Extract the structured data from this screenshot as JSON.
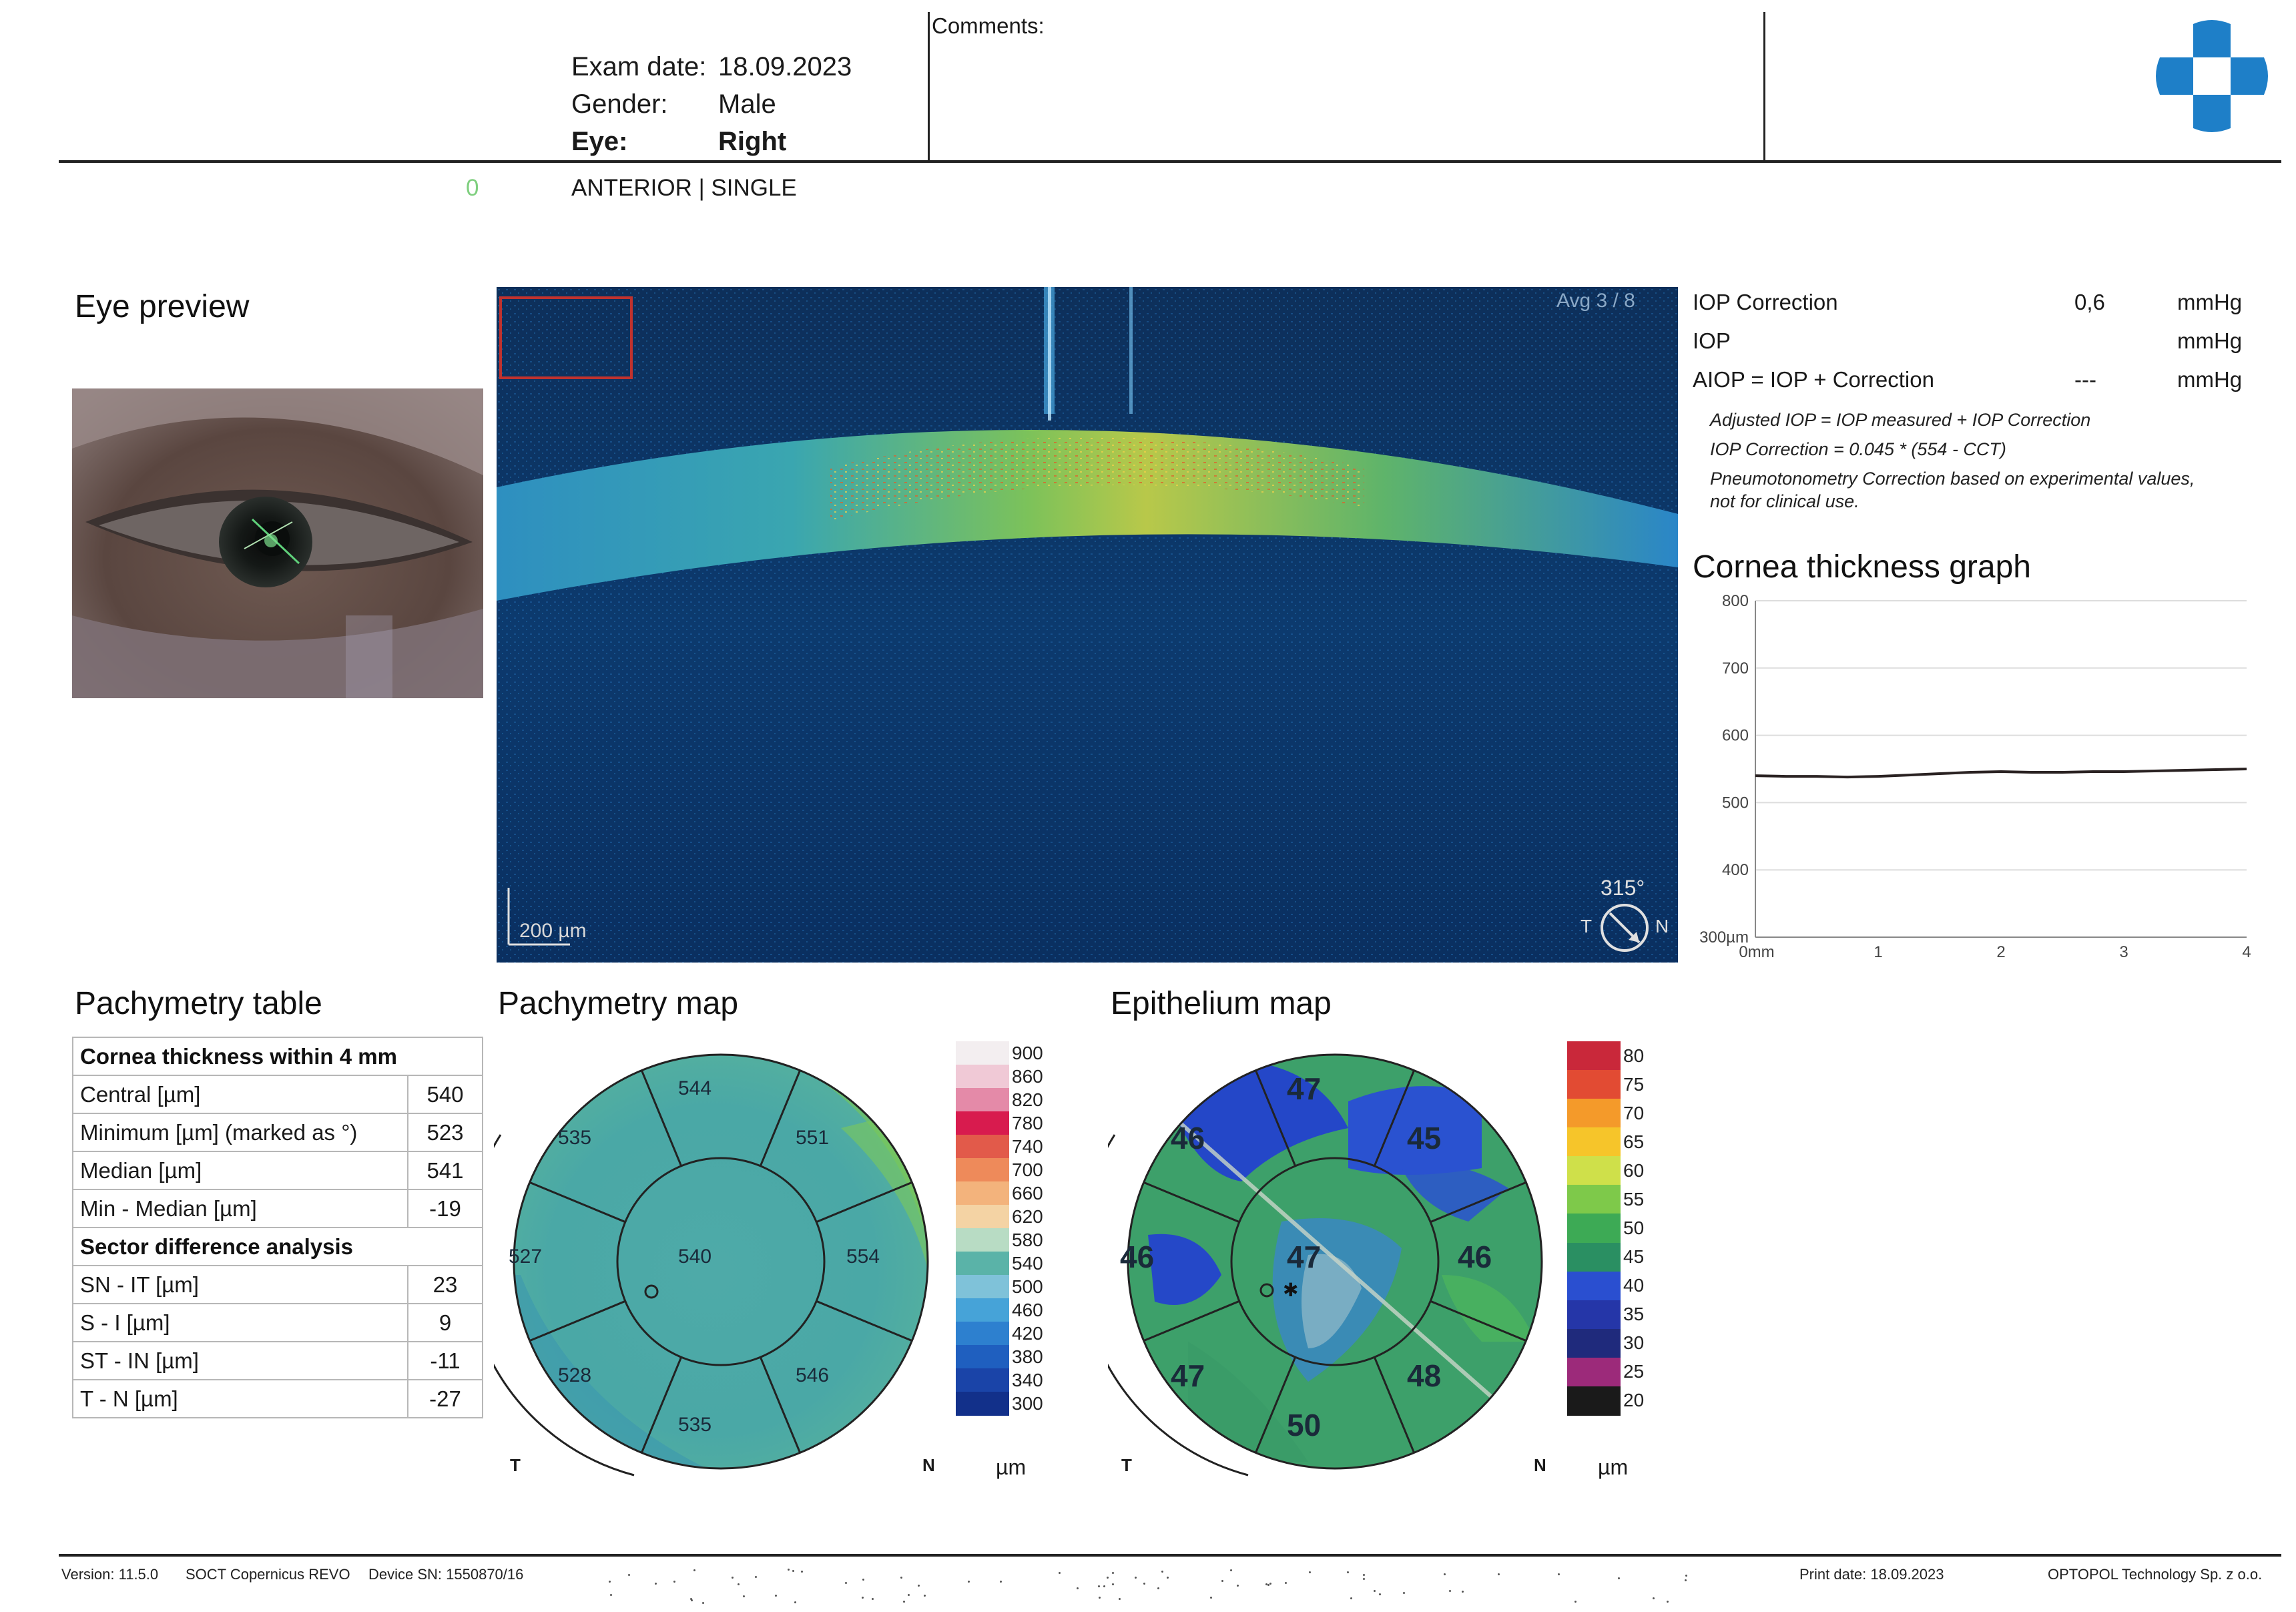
{
  "header": {
    "exam_date_label": "Exam date:",
    "exam_date": "18.09.2023",
    "gender_label": "Gender:",
    "gender": "Male",
    "eye_label": "Eye:",
    "eye": "Right",
    "comments_label": "Comments:",
    "scan_type": "ANTERIOR | SINGLE",
    "marker": "0"
  },
  "eye_preview": {
    "title": "Eye preview"
  },
  "oct_scan": {
    "avg_label": "Avg 3 / 8",
    "scale_label": "200 µm",
    "angle": "315°",
    "temporal": "T",
    "nasal": "N"
  },
  "iop": {
    "rows": [
      {
        "label": "IOP Correction",
        "value": "0,6",
        "unit": "mmHg"
      },
      {
        "label": "IOP",
        "value": "",
        "unit": "mmHg"
      },
      {
        "label": "AIOP = IOP + Correction",
        "value": "---",
        "unit": "mmHg"
      }
    ],
    "notes": [
      "Adjusted IOP = IOP measured + IOP Correction",
      "IOP Correction = 0.045 * (554 - CCT)",
      "Pneumotonometry Correction based on experimental values,",
      "not for clinical use."
    ]
  },
  "thickness_graph": {
    "title": "Cornea thickness graph",
    "y_ticks": [
      "800",
      "700",
      "600",
      "500",
      "400",
      "300µm"
    ],
    "x_ticks": [
      "0mm",
      "1",
      "2",
      "3",
      "4"
    ],
    "chart_data": {
      "type": "line",
      "ylim": [
        300,
        800
      ],
      "xlim": [
        0,
        4
      ],
      "x": [
        0,
        0.25,
        0.5,
        0.75,
        1.0,
        1.25,
        1.5,
        1.75,
        2.0,
        2.25,
        2.5,
        2.75,
        3.0,
        3.25,
        3.5,
        3.75,
        4.0
      ],
      "y": [
        540,
        539,
        539,
        538,
        539,
        541,
        543,
        545,
        546,
        545,
        545,
        546,
        546,
        547,
        548,
        549,
        550
      ]
    }
  },
  "pachymetry_table": {
    "title": "Pachymetry table",
    "section1_title": "Cornea thickness within 4 mm",
    "rows1": [
      {
        "label": "Central [µm]",
        "value": "540"
      },
      {
        "label": "Minimum [µm] (marked as °)",
        "value": "523"
      },
      {
        "label": "Median [µm]",
        "value": "541"
      },
      {
        "label": "Min - Median [µm]",
        "value": "-19"
      }
    ],
    "section2_title": "Sector difference analysis",
    "rows2": [
      {
        "label": "SN - IT [µm]",
        "value": "23"
      },
      {
        "label": "S - I [µm]",
        "value": "9"
      },
      {
        "label": "ST - IN [µm]",
        "value": "-11"
      },
      {
        "label": "T - N [µm]",
        "value": "-27"
      }
    ]
  },
  "pachymetry_map": {
    "title": "Pachymetry map",
    "center": "540",
    "sectors": [
      "544",
      "551",
      "554",
      "546",
      "535",
      "528",
      "527",
      "535"
    ],
    "temporal": "T",
    "nasal": "N",
    "unit": "µm",
    "legend": [
      "900",
      "860",
      "820",
      "780",
      "740",
      "700",
      "660",
      "620",
      "580",
      "540",
      "500",
      "460",
      "420",
      "380",
      "340",
      "300"
    ],
    "legend_colors": [
      "#f3eef0",
      "#f0c9d6",
      "#e48aa8",
      "#d81b4e",
      "#e25a4a",
      "#ee8a5a",
      "#f3b37c",
      "#f4d3a4",
      "#b8dcc4",
      "#5ab3a8",
      "#7fc2d9",
      "#46a3d8",
      "#2d80cf",
      "#1f5fbf",
      "#1a44a8",
      "#12308a"
    ]
  },
  "epithelium_map": {
    "title": "Epithelium map",
    "center": "47",
    "sectors": [
      "47",
      "45",
      "46",
      "48",
      "50",
      "47",
      "46",
      "46"
    ],
    "temporal": "T",
    "nasal": "N",
    "unit": "µm",
    "legend": [
      "80",
      "75",
      "70",
      "65",
      "60",
      "55",
      "50",
      "45",
      "40",
      "35",
      "30",
      "25",
      "20"
    ],
    "legend_colors": [
      "#c9283a",
      "#e24b33",
      "#f49a2a",
      "#f6c52a",
      "#cfe04a",
      "#7ec94a",
      "#3daa55",
      "#2a8f62",
      "#2a4fd0",
      "#2536a8",
      "#1f2a7c",
      "#9c2a7a",
      "#1a1a1a"
    ]
  },
  "footer": {
    "version": "Version: 11.5.0",
    "device": "SOCT Copernicus REVO",
    "serial": "Device SN: 1550870/16",
    "print_date": "Print date: 18.09.2023",
    "company": "OPTOPOL Technology Sp. z o.o."
  }
}
